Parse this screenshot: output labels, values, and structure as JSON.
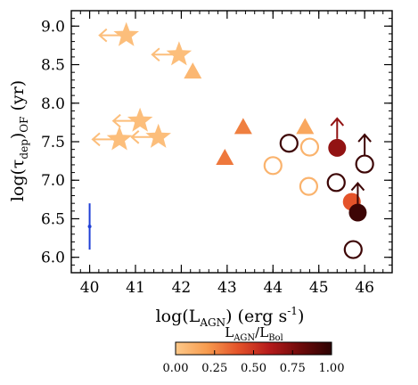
{
  "chart_data": {
    "type": "scatter",
    "xlabel_prefix": "log(L",
    "xlabel_sub": "AGN",
    "xlabel_units": ") (erg s",
    "xlabel_sup": "-1",
    "xlabel_close": ")",
    "ylabel_prefix": "log(τ",
    "ylabel_sub": "dep",
    "ylabel_mid": ")",
    "ylabel_sub2": "OF",
    "ylabel_units": " (yr)",
    "xlim": [
      39.6,
      46.6
    ],
    "ylim": [
      5.8,
      9.2
    ],
    "xticks": [
      40,
      41,
      42,
      43,
      44,
      45,
      46
    ],
    "yticks": [
      6.0,
      6.5,
      7.0,
      7.5,
      8.0,
      8.5,
      9.0
    ],
    "xtick_labels": [
      "40",
      "41",
      "42",
      "43",
      "44",
      "45",
      "46"
    ],
    "ytick_labels": [
      "6.0",
      "6.5",
      "7.0",
      "7.5",
      "8.0",
      "8.5",
      "9.0"
    ],
    "colorbar": {
      "label_main": "L",
      "label_sub1": "AGN",
      "label_slash": "/L",
      "label_sub2": "Bol",
      "range": [
        0,
        1
      ],
      "ticks": [
        "0.00",
        "0.25",
        "0.50",
        "0.75",
        "1.00"
      ],
      "stops": [
        "#fdc98a",
        "#f79c4f",
        "#e4532a",
        "#b51b1b",
        "#6e0a0a",
        "#2c0303"
      ]
    },
    "series": [
      {
        "marker": "star",
        "points": [
          {
            "x": 40.8,
            "y": 8.88,
            "c": 0.05,
            "arrow": "left"
          },
          {
            "x": 41.95,
            "y": 8.63,
            "c": 0.05,
            "arrow": "left"
          },
          {
            "x": 41.1,
            "y": 7.77,
            "c": 0.05,
            "arrow": "left"
          },
          {
            "x": 40.65,
            "y": 7.53,
            "c": 0.05,
            "arrow": "left"
          },
          {
            "x": 41.5,
            "y": 7.56,
            "c": 0.05,
            "arrow": "left"
          }
        ]
      },
      {
        "marker": "triangle",
        "points": [
          {
            "x": 42.25,
            "y": 8.4,
            "c": 0.08
          },
          {
            "x": 43.35,
            "y": 7.68,
            "c": 0.28
          },
          {
            "x": 42.95,
            "y": 7.28,
            "c": 0.3
          },
          {
            "x": 44.7,
            "y": 7.68,
            "c": 0.15
          }
        ]
      },
      {
        "marker": "circle-filled",
        "points": [
          {
            "x": 45.4,
            "y": 7.42,
            "c": 0.7,
            "arrow": "up"
          },
          {
            "x": 45.72,
            "y": 6.72,
            "c": 0.4
          },
          {
            "x": 45.85,
            "y": 6.58,
            "c": 0.95,
            "arrow": "up"
          }
        ]
      },
      {
        "marker": "circle-open",
        "points": [
          {
            "x": 44.35,
            "y": 7.48,
            "c": 0.95
          },
          {
            "x": 44.8,
            "y": 7.43,
            "c": 0.1
          },
          {
            "x": 44.0,
            "y": 7.19,
            "c": 0.1
          },
          {
            "x": 44.78,
            "y": 6.92,
            "c": 0.1
          },
          {
            "x": 45.38,
            "y": 6.97,
            "c": 0.95
          },
          {
            "x": 46.0,
            "y": 7.21,
            "c": 0.95,
            "arrow": "up"
          },
          {
            "x": 45.75,
            "y": 6.1,
            "c": 0.95
          }
        ]
      }
    ],
    "errorbar": {
      "x": 40.0,
      "y": 6.4,
      "ylow": 6.1,
      "yhigh": 6.7,
      "color": "#1f3fd6"
    }
  }
}
